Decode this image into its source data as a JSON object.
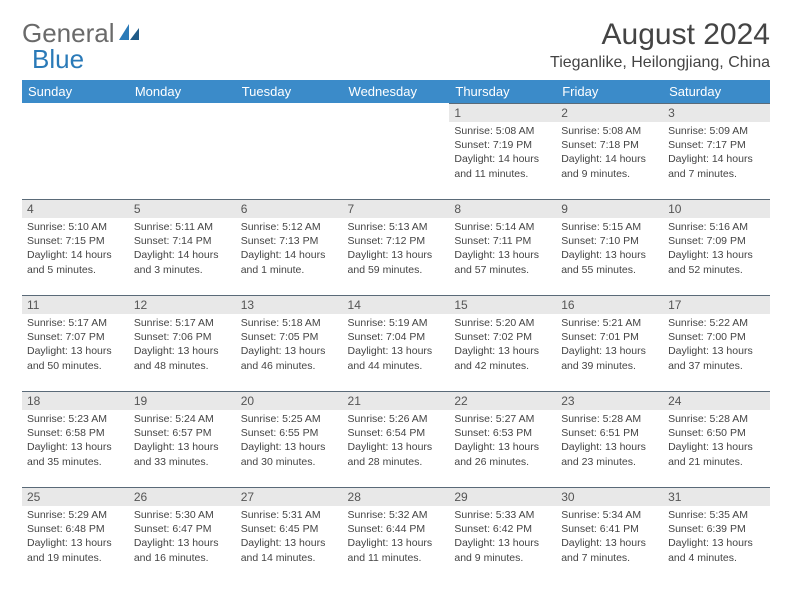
{
  "brand": {
    "text_gray": "General",
    "text_blue": "Blue"
  },
  "title": "August 2024",
  "location": "Tieganlike, Heilongjiang, China",
  "header_bg": "#3b8bc9",
  "daybar_bg": "#e8e8e8",
  "gray_text": "#6a6a6a",
  "blue_text": "#2a7ab8",
  "weekdays": [
    "Sunday",
    "Monday",
    "Tuesday",
    "Wednesday",
    "Thursday",
    "Friday",
    "Saturday"
  ],
  "weeks": [
    [
      null,
      null,
      null,
      null,
      {
        "n": "1",
        "sr": "5:08 AM",
        "ss": "7:19 PM",
        "dl1": "14 hours",
        "dl2": "and 11 minutes."
      },
      {
        "n": "2",
        "sr": "5:08 AM",
        "ss": "7:18 PM",
        "dl1": "14 hours",
        "dl2": "and 9 minutes."
      },
      {
        "n": "3",
        "sr": "5:09 AM",
        "ss": "7:17 PM",
        "dl1": "14 hours",
        "dl2": "and 7 minutes."
      }
    ],
    [
      {
        "n": "4",
        "sr": "5:10 AM",
        "ss": "7:15 PM",
        "dl1": "14 hours",
        "dl2": "and 5 minutes."
      },
      {
        "n": "5",
        "sr": "5:11 AM",
        "ss": "7:14 PM",
        "dl1": "14 hours",
        "dl2": "and 3 minutes."
      },
      {
        "n": "6",
        "sr": "5:12 AM",
        "ss": "7:13 PM",
        "dl1": "14 hours",
        "dl2": "and 1 minute."
      },
      {
        "n": "7",
        "sr": "5:13 AM",
        "ss": "7:12 PM",
        "dl1": "13 hours",
        "dl2": "and 59 minutes."
      },
      {
        "n": "8",
        "sr": "5:14 AM",
        "ss": "7:11 PM",
        "dl1": "13 hours",
        "dl2": "and 57 minutes."
      },
      {
        "n": "9",
        "sr": "5:15 AM",
        "ss": "7:10 PM",
        "dl1": "13 hours",
        "dl2": "and 55 minutes."
      },
      {
        "n": "10",
        "sr": "5:16 AM",
        "ss": "7:09 PM",
        "dl1": "13 hours",
        "dl2": "and 52 minutes."
      }
    ],
    [
      {
        "n": "11",
        "sr": "5:17 AM",
        "ss": "7:07 PM",
        "dl1": "13 hours",
        "dl2": "and 50 minutes."
      },
      {
        "n": "12",
        "sr": "5:17 AM",
        "ss": "7:06 PM",
        "dl1": "13 hours",
        "dl2": "and 48 minutes."
      },
      {
        "n": "13",
        "sr": "5:18 AM",
        "ss": "7:05 PM",
        "dl1": "13 hours",
        "dl2": "and 46 minutes."
      },
      {
        "n": "14",
        "sr": "5:19 AM",
        "ss": "7:04 PM",
        "dl1": "13 hours",
        "dl2": "and 44 minutes."
      },
      {
        "n": "15",
        "sr": "5:20 AM",
        "ss": "7:02 PM",
        "dl1": "13 hours",
        "dl2": "and 42 minutes."
      },
      {
        "n": "16",
        "sr": "5:21 AM",
        "ss": "7:01 PM",
        "dl1": "13 hours",
        "dl2": "and 39 minutes."
      },
      {
        "n": "17",
        "sr": "5:22 AM",
        "ss": "7:00 PM",
        "dl1": "13 hours",
        "dl2": "and 37 minutes."
      }
    ],
    [
      {
        "n": "18",
        "sr": "5:23 AM",
        "ss": "6:58 PM",
        "dl1": "13 hours",
        "dl2": "and 35 minutes."
      },
      {
        "n": "19",
        "sr": "5:24 AM",
        "ss": "6:57 PM",
        "dl1": "13 hours",
        "dl2": "and 33 minutes."
      },
      {
        "n": "20",
        "sr": "5:25 AM",
        "ss": "6:55 PM",
        "dl1": "13 hours",
        "dl2": "and 30 minutes."
      },
      {
        "n": "21",
        "sr": "5:26 AM",
        "ss": "6:54 PM",
        "dl1": "13 hours",
        "dl2": "and 28 minutes."
      },
      {
        "n": "22",
        "sr": "5:27 AM",
        "ss": "6:53 PM",
        "dl1": "13 hours",
        "dl2": "and 26 minutes."
      },
      {
        "n": "23",
        "sr": "5:28 AM",
        "ss": "6:51 PM",
        "dl1": "13 hours",
        "dl2": "and 23 minutes."
      },
      {
        "n": "24",
        "sr": "5:28 AM",
        "ss": "6:50 PM",
        "dl1": "13 hours",
        "dl2": "and 21 minutes."
      }
    ],
    [
      {
        "n": "25",
        "sr": "5:29 AM",
        "ss": "6:48 PM",
        "dl1": "13 hours",
        "dl2": "and 19 minutes."
      },
      {
        "n": "26",
        "sr": "5:30 AM",
        "ss": "6:47 PM",
        "dl1": "13 hours",
        "dl2": "and 16 minutes."
      },
      {
        "n": "27",
        "sr": "5:31 AM",
        "ss": "6:45 PM",
        "dl1": "13 hours",
        "dl2": "and 14 minutes."
      },
      {
        "n": "28",
        "sr": "5:32 AM",
        "ss": "6:44 PM",
        "dl1": "13 hours",
        "dl2": "and 11 minutes."
      },
      {
        "n": "29",
        "sr": "5:33 AM",
        "ss": "6:42 PM",
        "dl1": "13 hours",
        "dl2": "and 9 minutes."
      },
      {
        "n": "30",
        "sr": "5:34 AM",
        "ss": "6:41 PM",
        "dl1": "13 hours",
        "dl2": "and 7 minutes."
      },
      {
        "n": "31",
        "sr": "5:35 AM",
        "ss": "6:39 PM",
        "dl1": "13 hours",
        "dl2": "and 4 minutes."
      }
    ]
  ],
  "labels": {
    "sunrise": "Sunrise:",
    "sunset": "Sunset:",
    "daylight": "Daylight:"
  }
}
